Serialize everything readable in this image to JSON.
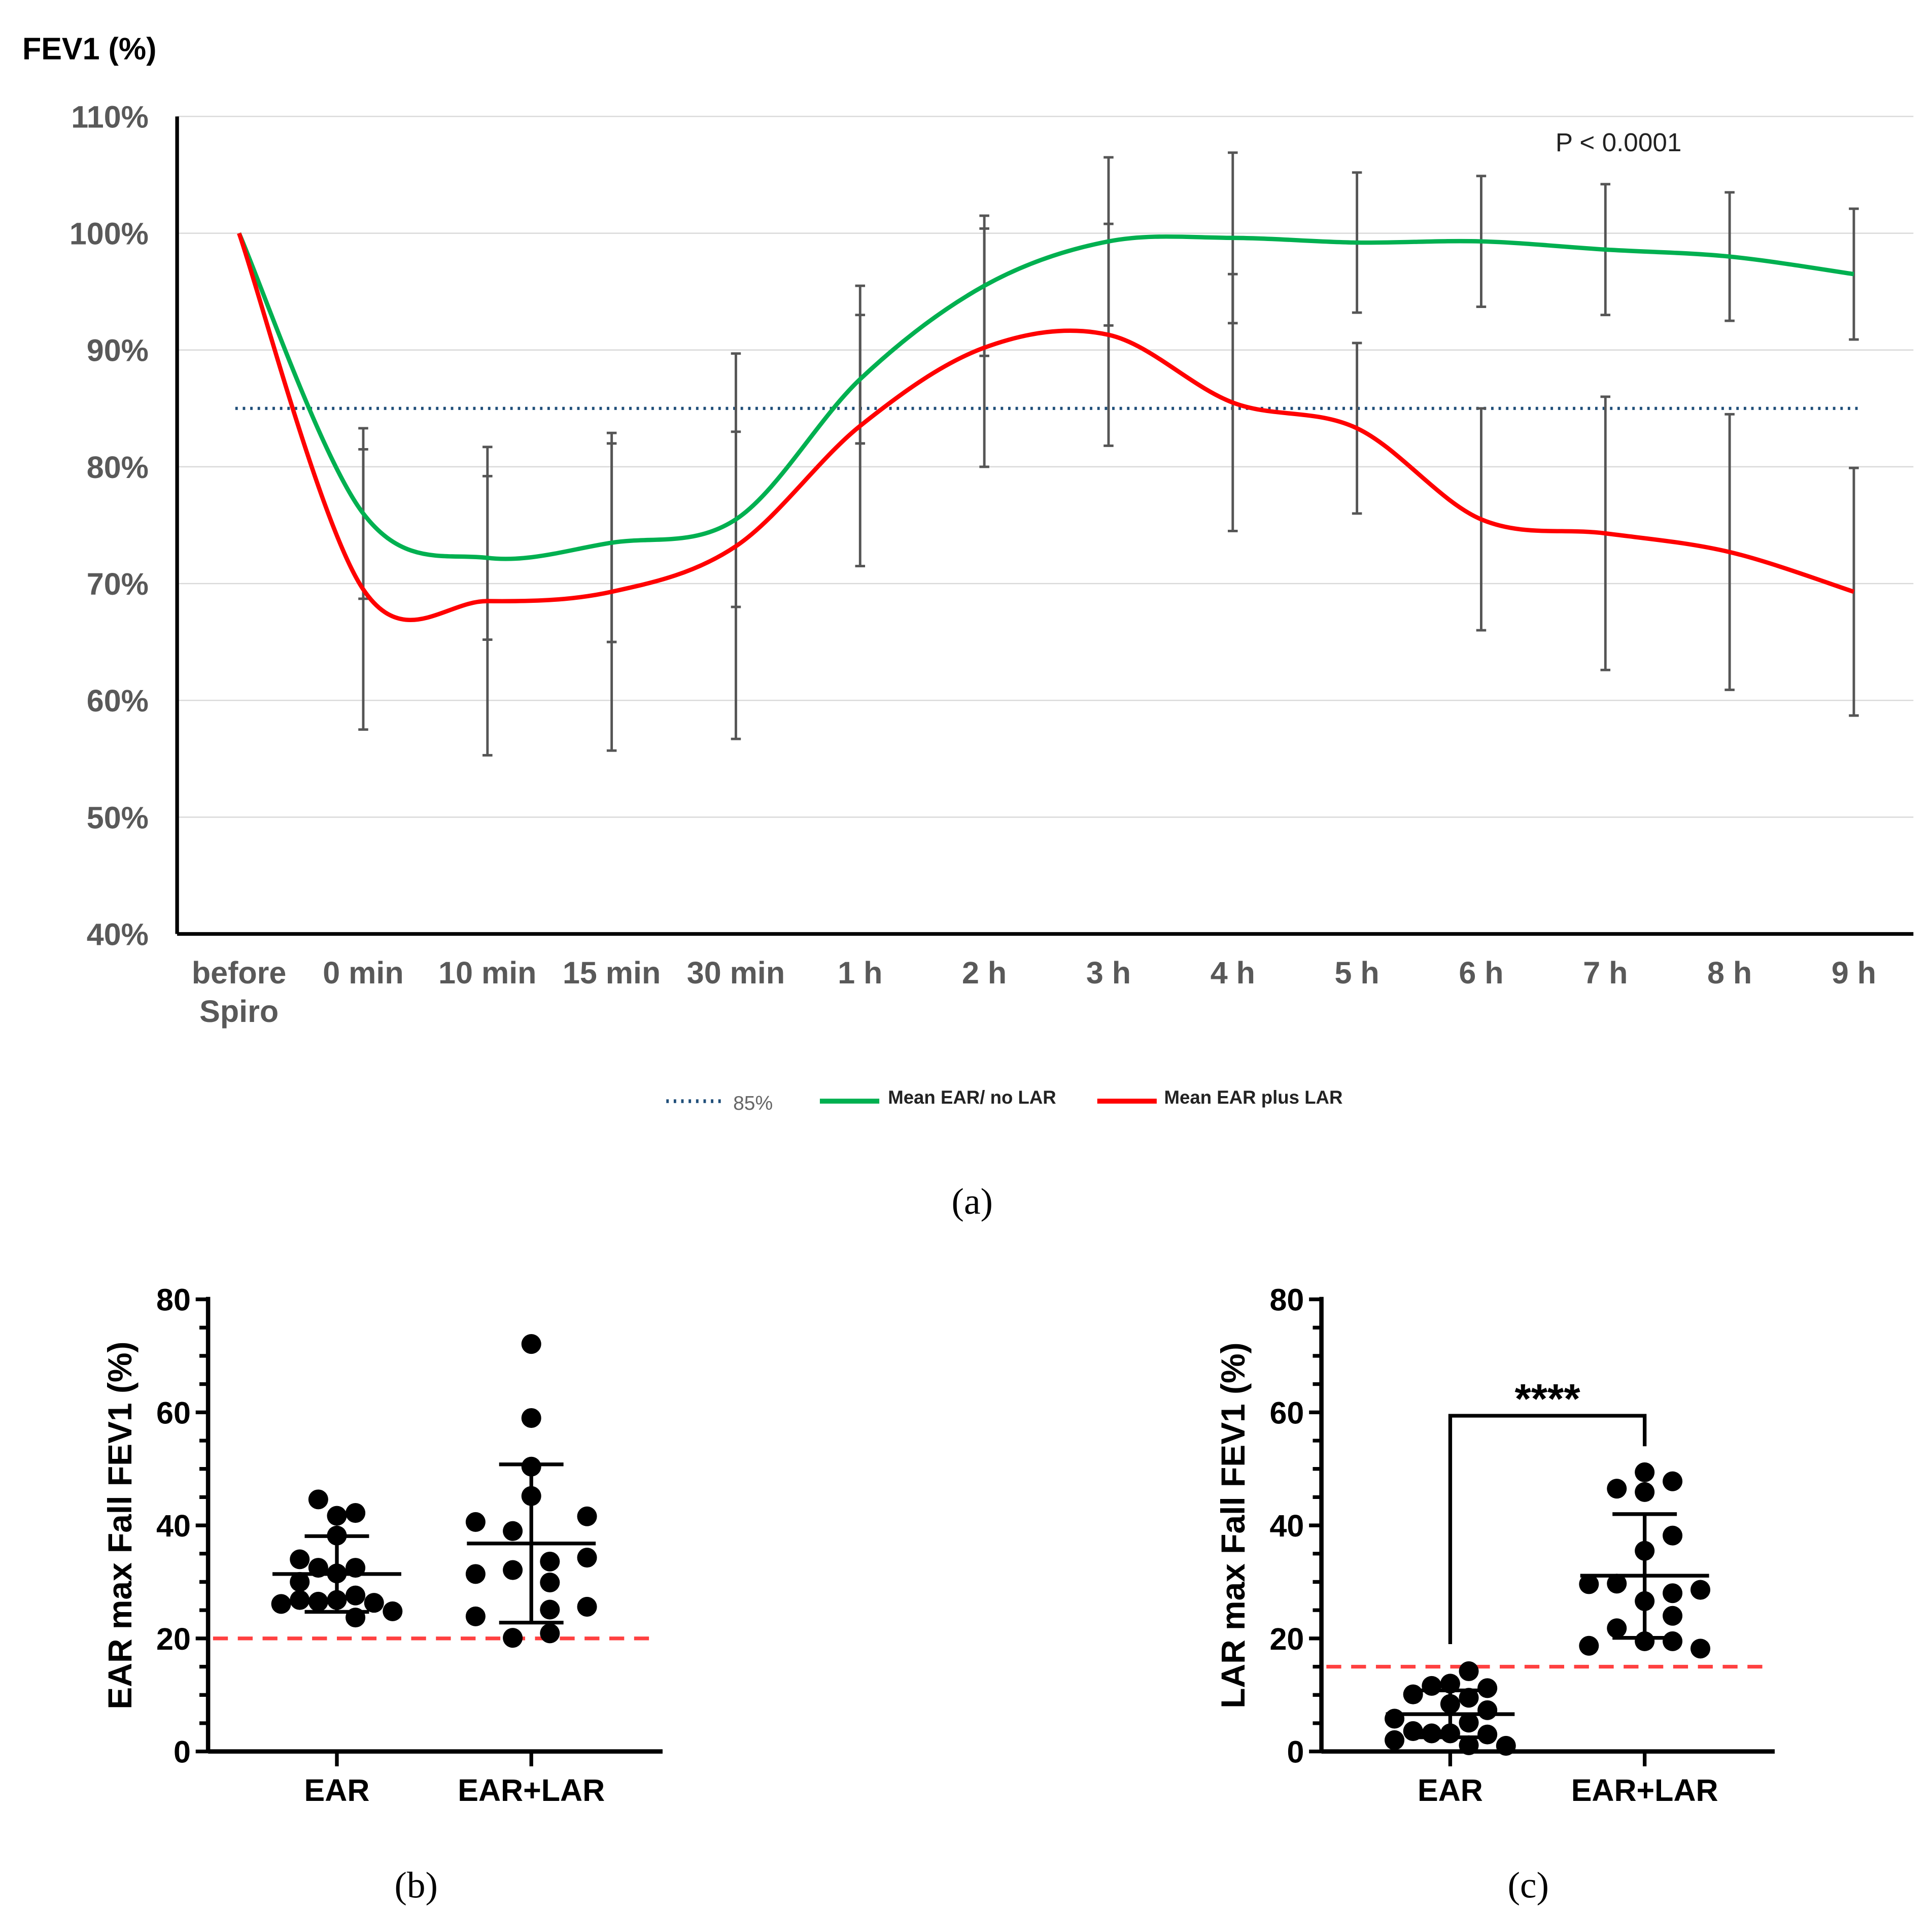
{
  "chart_data": [
    {
      "type": "line",
      "panel_caption": "(a)",
      "title": "FEV1 (%)",
      "annotation": "P < 0.0001",
      "categories": [
        [
          "before",
          "Spiro"
        ],
        [
          "0 min"
        ],
        [
          "10 min"
        ],
        [
          "15 min"
        ],
        [
          "30 min"
        ],
        [
          "1 h"
        ],
        [
          "2 h"
        ],
        [
          "3 h"
        ],
        [
          "4 h"
        ],
        [
          "5 h"
        ],
        [
          "6 h"
        ],
        [
          "7 h"
        ],
        [
          "8 h"
        ],
        [
          "9 h"
        ]
      ],
      "ylim": [
        40,
        110
      ],
      "yticks": [
        40,
        50,
        60,
        70,
        80,
        90,
        100,
        110
      ],
      "ytick_suffix": "%",
      "grid": true,
      "reference": {
        "name": "85%",
        "value": 85,
        "color": "#1f4e79"
      },
      "series": [
        {
          "name": "Mean EAR/  no LAR",
          "color": "#00b050",
          "values": [
            100,
            76,
            72.2,
            73.5,
            75.5,
            87.5,
            95.5,
            99.3,
            99.6,
            99.2,
            99.3,
            98.6,
            98,
            96.5
          ],
          "sd": [
            0,
            7.3,
            7,
            8.5,
            7.5,
            5.5,
            6,
            7.2,
            7.3,
            6,
            5.6,
            5.6,
            5.5,
            5.6
          ]
        },
        {
          "name": "Mean EAR  plus LAR",
          "color": "#ff0000",
          "values": [
            100,
            69.5,
            68.5,
            69.3,
            73.2,
            83.5,
            90.2,
            91.3,
            85.5,
            83.3,
            75.5,
            74.3,
            72.7,
            69.3
          ],
          "sd": [
            0,
            12,
            13.2,
            13.6,
            16.5,
            12,
            10.2,
            9.5,
            11,
            7.3,
            9.5,
            11.7,
            11.8,
            10.6
          ]
        }
      ],
      "legend": "bottom"
    },
    {
      "type": "scatter",
      "panel_caption": "(b)",
      "ylabel": "EAR max Fall FEV1 (%)",
      "ylim": [
        0,
        80
      ],
      "yticks": [
        0,
        20,
        40,
        60,
        80
      ],
      "threshold": 20,
      "threshold_color": "#ff4040",
      "groups": [
        {
          "name": "EAR",
          "mean": 31.4,
          "sd_upper": 38.1,
          "sd_lower": 24.7,
          "points": [
            [
              -1,
              44.6
            ],
            [
              0,
              41.7
            ],
            [
              1,
              42.2
            ],
            [
              0,
              38.2
            ],
            [
              -2,
              34
            ],
            [
              -1,
              32.5
            ],
            [
              0,
              31.5
            ],
            [
              1,
              32.5
            ],
            [
              -2,
              30
            ],
            [
              -3,
              26.1
            ],
            [
              -2,
              26.8
            ],
            [
              -1,
              26.5
            ],
            [
              0,
              26.8
            ],
            [
              1,
              27.6
            ],
            [
              2,
              26.3
            ],
            [
              3,
              24.8
            ],
            [
              1,
              23.7
            ]
          ]
        },
        {
          "name": "EAR+LAR",
          "mean": 36.8,
          "sd_upper": 50.8,
          "sd_lower": 22.8,
          "points": [
            [
              0,
              72.1
            ],
            [
              0,
              59
            ],
            [
              0,
              50.4
            ],
            [
              0,
              45.2
            ],
            [
              -3,
              40.6
            ],
            [
              -1,
              39
            ],
            [
              3,
              41.6
            ],
            [
              -3,
              31.4
            ],
            [
              -1,
              32.1
            ],
            [
              1,
              33.6
            ],
            [
              3,
              34.3
            ],
            [
              1,
              29.9
            ],
            [
              1,
              25.1
            ],
            [
              3,
              25.6
            ],
            [
              -3,
              23.9
            ],
            [
              -1,
              20.1
            ],
            [
              1,
              20.9
            ]
          ]
        }
      ]
    },
    {
      "type": "scatter",
      "panel_caption": "(c)",
      "ylabel": "LAR max Fall FEV1 (%)",
      "ylim": [
        0,
        80
      ],
      "yticks": [
        0,
        20,
        40,
        60,
        80
      ],
      "threshold": 15,
      "threshold_color": "#ff4040",
      "significance": "****",
      "bracket": [
        59.4,
        19,
        54
      ],
      "groups": [
        {
          "name": "EAR",
          "mean": 6.6,
          "sd_upper": 10.8,
          "sd_lower": 2.5,
          "points": [
            [
              1,
              14.2
            ],
            [
              -2,
              10.1
            ],
            [
              -1,
              11.6
            ],
            [
              0,
              12
            ],
            [
              2,
              11.2
            ],
            [
              0,
              8.4
            ],
            [
              1,
              9.5
            ],
            [
              2,
              7.3
            ],
            [
              -3,
              5.8
            ],
            [
              -2,
              3.6
            ],
            [
              -1,
              3.2
            ],
            [
              0,
              3.2
            ],
            [
              1,
              5.1
            ],
            [
              2,
              3
            ],
            [
              -3,
              2
            ],
            [
              1,
              1.1
            ],
            [
              3,
              1
            ]
          ]
        },
        {
          "name": "EAR+LAR",
          "mean": 31.1,
          "sd_upper": 42,
          "sd_lower": 20.1,
          "points": [
            [
              0,
              49.4
            ],
            [
              1,
              47.8
            ],
            [
              -1,
              46.5
            ],
            [
              0,
              45.9
            ],
            [
              1,
              38.2
            ],
            [
              0,
              35.5
            ],
            [
              -2,
              29.6
            ],
            [
              -1,
              29.7
            ],
            [
              1,
              28
            ],
            [
              2,
              28.6
            ],
            [
              0,
              26.6
            ],
            [
              1,
              24
            ],
            [
              -1,
              21.8
            ],
            [
              -2,
              18.7
            ],
            [
              0,
              19.5
            ],
            [
              1,
              19.5
            ],
            [
              2,
              18.2
            ]
          ]
        }
      ]
    }
  ]
}
